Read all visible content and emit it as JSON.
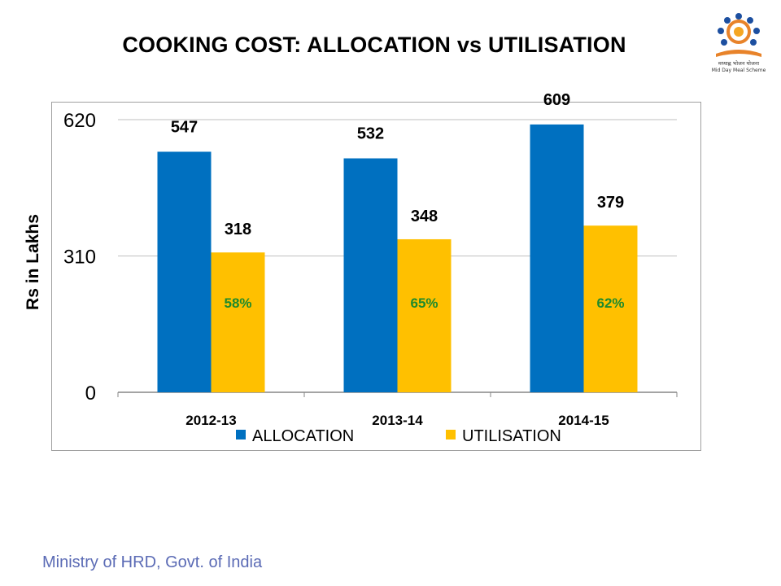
{
  "title": "COOKING COST: ALLOCATION vs UTILISATION",
  "logo": {
    "text": "मध्याह्न भोजन योजना",
    "subtext": "Mid Day Meal Scheme",
    "icon": "mid-day-meal-logo-icon"
  },
  "footer": "Ministry of HRD, Govt. of India",
  "colors": {
    "allocation": "#0070c0",
    "utilisation": "#ffc000",
    "pct_label": "#1e8a2c",
    "grid": "#bfbfbf",
    "axis": "#868686"
  },
  "chart_data": {
    "type": "bar",
    "title": "COOKING COST: ALLOCATION vs UTILISATION",
    "xlabel": "",
    "ylabel": "Rs in Lakhs",
    "ylim": [
      0,
      620
    ],
    "yticks": [
      "0",
      "310",
      "620"
    ],
    "grid": true,
    "legend_position": "bottom",
    "categories": [
      "2012-13",
      "2013-14",
      "2014-15"
    ],
    "series": [
      {
        "name": "ALLOCATION",
        "values": [
          547,
          532,
          609
        ],
        "labels": [
          "547",
          "532",
          "609"
        ]
      },
      {
        "name": "UTILISATION",
        "values": [
          318,
          348,
          379
        ],
        "labels": [
          "318",
          "348",
          "379"
        ],
        "pct_labels": [
          "58%",
          "65%",
          "62%"
        ]
      }
    ]
  }
}
